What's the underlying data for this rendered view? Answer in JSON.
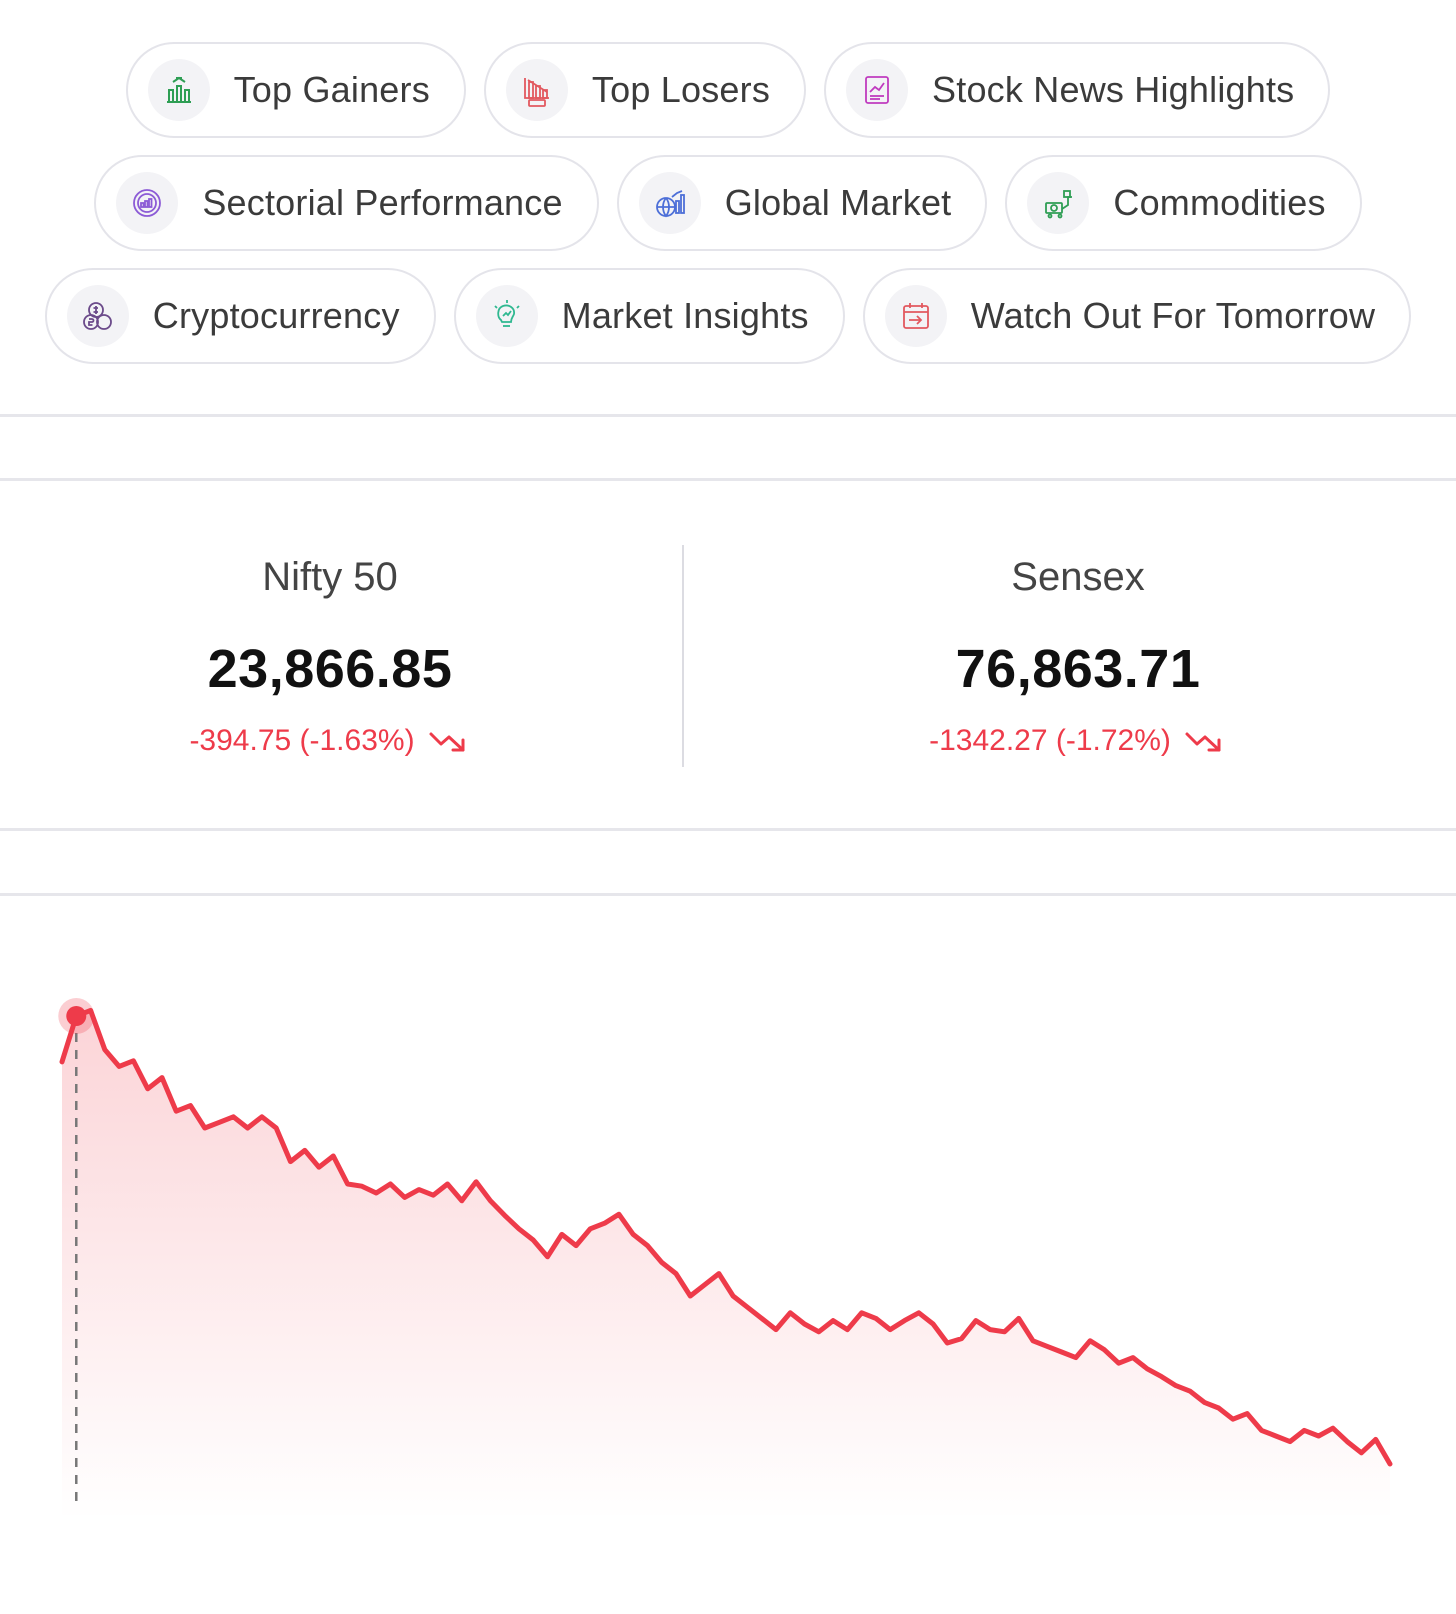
{
  "nav_chips": [
    {
      "label": "Top Gainers",
      "icon": "bar-chart-up-icon",
      "color": "#2e9e54"
    },
    {
      "label": "Top Losers",
      "icon": "loss-chart-icon",
      "color": "#e2585f"
    },
    {
      "label": "Stock News Highlights",
      "icon": "news-chart-icon",
      "color": "#c03bbf"
    },
    {
      "label": "Sectorial Performance",
      "icon": "sector-chart-icon",
      "color": "#8c5bd6"
    },
    {
      "label": "Global Market",
      "icon": "global-market-icon",
      "color": "#4d6fd8"
    },
    {
      "label": "Commodities",
      "icon": "commodities-icon",
      "color": "#2e9e54"
    },
    {
      "label": "Cryptocurrency",
      "icon": "crypto-coins-icon",
      "color": "#6b4a8a"
    },
    {
      "label": "Market Insights",
      "icon": "insights-bulb-icon",
      "color": "#2fb890"
    },
    {
      "label": "Watch Out For Tomorrow",
      "icon": "calendar-icon",
      "color": "#e2585f"
    }
  ],
  "indices": [
    {
      "name": "Nifty 50",
      "value": "23,866.85",
      "change": "-394.75 (-1.63%)",
      "direction": "down"
    },
    {
      "name": "Sensex",
      "value": "76,863.71",
      "change": "-1342.27 (-1.72%)",
      "direction": "down"
    }
  ],
  "colors": {
    "negative": "#ee3b4a",
    "chip_border": "#e4e4ea",
    "divider": "#e6e6eb"
  },
  "chart_data": {
    "type": "area",
    "color": "#ee3b4a",
    "values": [
      24209,
      24250,
      24255,
      24220,
      24205,
      24210,
      24185,
      24195,
      24165,
      24170,
      24150,
      24155,
      24160,
      24150,
      24160,
      24150,
      24120,
      24130,
      24115,
      24125,
      24100,
      24098,
      24092,
      24100,
      24088,
      24095,
      24090,
      24100,
      24085,
      24102,
      24085,
      24072,
      24060,
      24050,
      24035,
      24055,
      24045,
      24060,
      24065,
      24073,
      24055,
      24045,
      24030,
      24020,
      24000,
      24010,
      24020,
      24000,
      23990,
      23980,
      23970,
      23985,
      23975,
      23968,
      23978,
      23970,
      23985,
      23980,
      23970,
      23978,
      23985,
      23975,
      23958,
      23962,
      23978,
      23970,
      23968,
      23980,
      23960,
      23955,
      23950,
      23945,
      23960,
      23952,
      23940,
      23945,
      23935,
      23928,
      23920,
      23915,
      23905,
      23900,
      23890,
      23895,
      23880,
      23875,
      23870,
      23880,
      23875,
      23882,
      23870,
      23860,
      23872,
      23850
    ],
    "marker_index": 1,
    "ylim": [
      23800,
      24300
    ]
  }
}
